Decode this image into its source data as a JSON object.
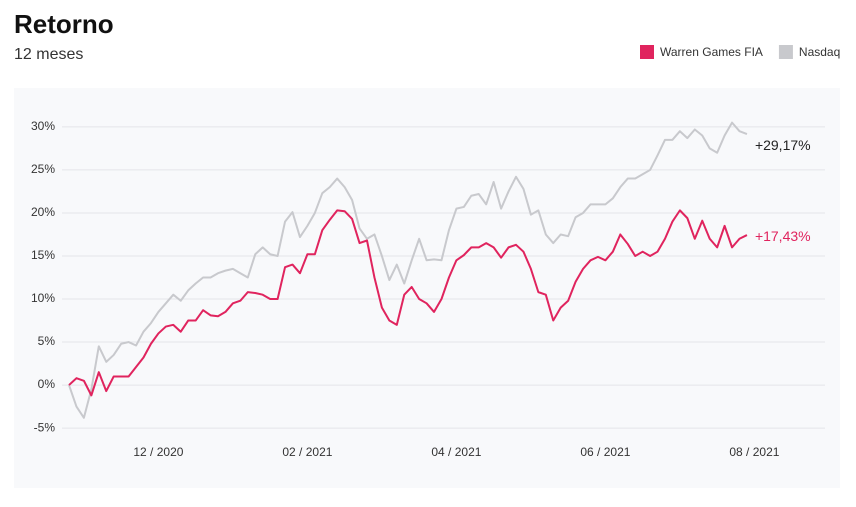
{
  "chart_data": {
    "type": "line",
    "title": "Retorno",
    "subtitle": "12 meses",
    "legend": "top-right",
    "grid": true,
    "categories": [
      null,
      null,
      null,
      null,
      null,
      null,
      null,
      null,
      null,
      null,
      null,
      null,
      "12 / 2020",
      null,
      null,
      null,
      null,
      null,
      null,
      null,
      null,
      null,
      null,
      null,
      null,
      null,
      null,
      null,
      null,
      null,
      null,
      null,
      "02 / 2021",
      null,
      null,
      null,
      null,
      null,
      null,
      null,
      null,
      null,
      null,
      null,
      null,
      null,
      null,
      null,
      null,
      null,
      null,
      null,
      "04 / 2021",
      null,
      null,
      null,
      null,
      null,
      null,
      null,
      null,
      null,
      null,
      null,
      null,
      null,
      null,
      null,
      null,
      null,
      null,
      null,
      "06 / 2021",
      null,
      null,
      null,
      null,
      null,
      null,
      null,
      null,
      null,
      null,
      null,
      null,
      null,
      null,
      null,
      null,
      null,
      null,
      null,
      "08 / 2021"
    ],
    "ylim": [
      -6.5,
      31.5
    ],
    "yticks": [
      {
        "value": -5,
        "label": "-5%"
      },
      {
        "value": 0,
        "label": "0%"
      },
      {
        "value": 5,
        "label": "5%"
      },
      {
        "value": 10,
        "label": "10%"
      },
      {
        "value": 15,
        "label": "15%"
      },
      {
        "value": 20,
        "label": "20%"
      },
      {
        "value": 25,
        "label": "25%"
      },
      {
        "value": 30,
        "label": "30%"
      }
    ],
    "series": [
      {
        "name": "Warren Games FIA",
        "color": "#e0245e",
        "values": [
          0,
          0.8,
          0.5,
          -1.2,
          1.5,
          -0.7,
          1,
          1,
          1,
          2.1,
          3.2,
          4.8,
          6,
          6.8,
          7,
          6.2,
          7.5,
          7.5,
          8.7,
          8.1,
          8,
          8.5,
          9.5,
          9.8,
          10.8,
          10.7,
          10.5,
          10,
          10,
          13.7,
          14,
          13,
          15.2,
          15.2,
          18,
          19.2,
          20.3,
          20.2,
          19.3,
          16.5,
          16.8,
          12.5,
          9,
          7.5,
          7,
          10.5,
          11.4,
          10,
          9.5,
          8.5,
          10,
          12.5,
          14.5,
          15.1,
          16,
          16,
          16.5,
          16,
          14.8,
          16,
          16.3,
          15.5,
          13.5,
          10.8,
          10.5,
          7.5,
          9,
          9.8,
          12,
          13.5,
          14.5,
          14.9,
          14.5,
          15.5,
          17.5,
          16.4,
          15,
          15.5,
          15,
          15.5,
          17,
          19,
          20.3,
          19.4,
          17,
          19.1,
          17,
          16,
          18.5,
          16,
          17,
          17.43,
          null
        ],
        "value_labels": [
          null,
          null,
          null,
          null,
          null,
          null,
          null,
          null,
          null,
          null,
          null,
          null,
          null,
          null,
          null,
          null,
          null,
          null,
          null,
          null,
          null,
          null,
          null,
          null,
          null,
          null,
          null,
          null,
          null,
          null,
          null,
          null,
          null,
          null,
          null,
          null,
          null,
          null,
          null,
          null,
          null,
          null,
          null,
          null,
          null,
          null,
          null,
          null,
          null,
          null,
          null,
          null,
          null,
          null,
          null,
          null,
          null,
          null,
          null,
          null,
          null,
          null,
          null,
          null,
          null,
          null,
          null,
          null,
          null,
          null,
          null,
          null,
          null,
          null,
          null,
          null,
          null,
          null,
          null,
          null,
          null,
          null,
          null,
          null,
          null,
          null,
          null,
          null,
          null,
          null,
          null,
          "+17,43%",
          null
        ]
      },
      {
        "name": "Nasdaq",
        "color": "#c8c9cd",
        "values": [
          0,
          -2.5,
          -3.8,
          -0.5,
          4.5,
          2.7,
          3.5,
          4.8,
          5,
          4.6,
          6.2,
          7.2,
          8.5,
          9.5,
          10.5,
          9.8,
          11,
          11.8,
          12.5,
          12.5,
          13,
          13.3,
          13.5,
          13,
          12.5,
          15.2,
          16,
          15.2,
          15,
          19,
          20.1,
          17.2,
          18.5,
          20,
          22.3,
          23,
          24,
          23,
          21.5,
          18.2,
          17,
          17.5,
          15,
          12.2,
          14,
          11.8,
          14.5,
          17,
          14.5,
          14.6,
          14.5,
          18,
          20.5,
          20.7,
          22,
          22.2,
          21,
          23.6,
          20.5,
          22.5,
          24.2,
          22.8,
          19.8,
          20.3,
          17.5,
          16.5,
          17.5,
          17.3,
          19.5,
          20,
          21,
          21,
          21,
          21.7,
          23,
          24,
          24,
          24.5,
          25,
          26.7,
          28.5,
          28.5,
          29.5,
          28.7,
          29.7,
          29,
          27.5,
          27,
          29,
          30.5,
          29.5,
          29.17,
          null
        ],
        "value_labels": [
          null,
          null,
          null,
          null,
          null,
          null,
          null,
          null,
          null,
          null,
          null,
          null,
          null,
          null,
          null,
          null,
          null,
          null,
          null,
          null,
          null,
          null,
          null,
          null,
          null,
          null,
          null,
          null,
          null,
          null,
          null,
          null,
          null,
          null,
          null,
          null,
          null,
          null,
          null,
          null,
          null,
          null,
          null,
          null,
          null,
          null,
          null,
          null,
          null,
          null,
          null,
          null,
          null,
          null,
          null,
          null,
          null,
          null,
          null,
          null,
          null,
          null,
          null,
          null,
          null,
          null,
          null,
          null,
          null,
          null,
          null,
          null,
          null,
          null,
          null,
          null,
          null,
          null,
          null,
          null,
          null,
          null,
          null,
          null,
          null,
          null,
          null,
          null,
          null,
          null,
          null,
          "+29,17%",
          null
        ]
      }
    ]
  }
}
